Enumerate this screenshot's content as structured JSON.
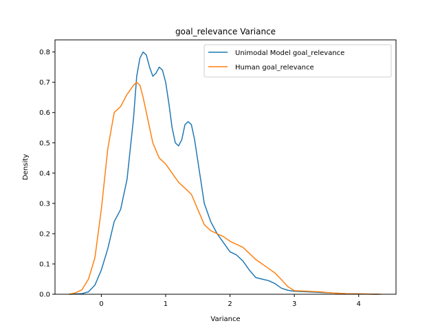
{
  "chart_data": {
    "type": "line",
    "title": "goal_relevance Variance",
    "xlabel": "Variance",
    "ylabel": "Density",
    "xlim": [
      -0.72,
      4.58
    ],
    "ylim": [
      0,
      0.84
    ],
    "xticks": [
      0,
      1,
      2,
      3,
      4
    ],
    "yticks": [
      0.0,
      0.1,
      0.2,
      0.3,
      0.4,
      0.5,
      0.6,
      0.7,
      0.8
    ],
    "grid": false,
    "legend_position": "top-right",
    "series": [
      {
        "name": "Unimodal Model goal_relevance",
        "color": "#1f77b4",
        "x": [
          -0.5,
          -0.3,
          -0.2,
          -0.1,
          0.0,
          0.1,
          0.2,
          0.3,
          0.4,
          0.5,
          0.55,
          0.6,
          0.65,
          0.7,
          0.75,
          0.8,
          0.85,
          0.9,
          0.95,
          1.0,
          1.05,
          1.1,
          1.15,
          1.2,
          1.25,
          1.3,
          1.35,
          1.4,
          1.45,
          1.5,
          1.6,
          1.7,
          1.8,
          1.9,
          2.0,
          2.1,
          2.2,
          2.3,
          2.4,
          2.5,
          2.6,
          2.7,
          2.8,
          2.9,
          3.0,
          3.2,
          3.4,
          3.6,
          3.8,
          4.0,
          4.3
        ],
        "y": [
          0.0,
          0.002,
          0.008,
          0.03,
          0.08,
          0.15,
          0.24,
          0.28,
          0.38,
          0.58,
          0.72,
          0.78,
          0.8,
          0.79,
          0.75,
          0.72,
          0.73,
          0.75,
          0.74,
          0.7,
          0.63,
          0.55,
          0.5,
          0.49,
          0.51,
          0.56,
          0.57,
          0.56,
          0.51,
          0.44,
          0.3,
          0.24,
          0.2,
          0.17,
          0.14,
          0.13,
          0.11,
          0.08,
          0.055,
          0.05,
          0.045,
          0.035,
          0.02,
          0.013,
          0.01,
          0.008,
          0.006,
          0.004,
          0.002,
          0.001,
          0.0
        ]
      },
      {
        "name": "Human goal_relevance",
        "color": "#ff7f0e",
        "x": [
          -0.5,
          -0.4,
          -0.3,
          -0.2,
          -0.1,
          0.0,
          0.1,
          0.2,
          0.3,
          0.4,
          0.5,
          0.55,
          0.6,
          0.65,
          0.7,
          0.8,
          0.9,
          1.0,
          1.1,
          1.2,
          1.3,
          1.4,
          1.5,
          1.6,
          1.7,
          1.8,
          1.9,
          2.0,
          2.1,
          2.2,
          2.3,
          2.4,
          2.5,
          2.6,
          2.7,
          2.8,
          2.9,
          3.0,
          3.2,
          3.4,
          3.6,
          3.8,
          4.0,
          4.35
        ],
        "y": [
          0.0,
          0.005,
          0.015,
          0.05,
          0.12,
          0.28,
          0.48,
          0.6,
          0.62,
          0.66,
          0.69,
          0.7,
          0.69,
          0.65,
          0.6,
          0.5,
          0.45,
          0.43,
          0.4,
          0.37,
          0.35,
          0.33,
          0.28,
          0.23,
          0.21,
          0.2,
          0.19,
          0.175,
          0.165,
          0.155,
          0.135,
          0.115,
          0.1,
          0.085,
          0.07,
          0.048,
          0.025,
          0.012,
          0.01,
          0.008,
          0.004,
          0.002,
          0.001,
          0.0
        ]
      }
    ]
  }
}
